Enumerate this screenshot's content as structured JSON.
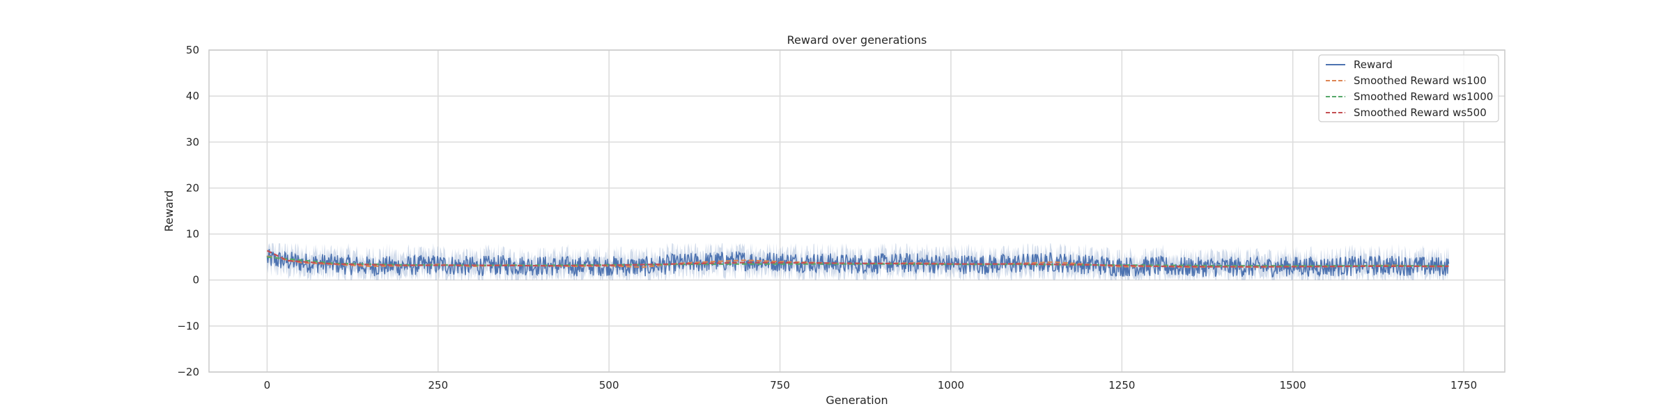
{
  "chart_data": {
    "type": "line",
    "title": "Reward over generations",
    "xlabel": "Generation",
    "ylabel": "Reward",
    "xlim": [
      -85,
      1810
    ],
    "ylim": [
      -20,
      50
    ],
    "x_ticks": [
      0,
      250,
      500,
      750,
      1000,
      1250,
      1500,
      1750
    ],
    "y_ticks": [
      -20,
      -10,
      0,
      10,
      20,
      30,
      40,
      50
    ],
    "grid": true,
    "legend_position": "top-right",
    "series": [
      {
        "name": "Reward",
        "style": "solid",
        "color": "#4c72b0",
        "has_confidence_band": true,
        "x_range": [
          0,
          1728
        ],
        "segment_means": [
          {
            "x": 0,
            "mean": 4.6
          },
          {
            "x": 50,
            "mean": 3.8
          },
          {
            "x": 100,
            "mean": 3.5
          },
          {
            "x": 150,
            "mean": 3.0
          },
          {
            "x": 200,
            "mean": 3.1
          },
          {
            "x": 250,
            "mean": 3.4
          },
          {
            "x": 300,
            "mean": 3.0
          },
          {
            "x": 350,
            "mean": 3.3
          },
          {
            "x": 400,
            "mean": 3.1
          },
          {
            "x": 450,
            "mean": 3.0
          },
          {
            "x": 500,
            "mean": 3.1
          },
          {
            "x": 550,
            "mean": 2.9
          },
          {
            "x": 600,
            "mean": 3.6
          },
          {
            "x": 650,
            "mean": 4.0
          },
          {
            "x": 700,
            "mean": 4.2
          },
          {
            "x": 750,
            "mean": 4.0
          },
          {
            "x": 800,
            "mean": 3.8
          },
          {
            "x": 850,
            "mean": 3.5
          },
          {
            "x": 900,
            "mean": 3.6
          },
          {
            "x": 950,
            "mean": 3.7
          },
          {
            "x": 1000,
            "mean": 3.5
          },
          {
            "x": 1050,
            "mean": 3.4
          },
          {
            "x": 1100,
            "mean": 3.6
          },
          {
            "x": 1150,
            "mean": 3.9
          },
          {
            "x": 1200,
            "mean": 3.4
          },
          {
            "x": 1250,
            "mean": 2.9
          },
          {
            "x": 1300,
            "mean": 3.0
          },
          {
            "x": 1350,
            "mean": 2.8
          },
          {
            "x": 1400,
            "mean": 2.9
          },
          {
            "x": 1450,
            "mean": 2.8
          },
          {
            "x": 1500,
            "mean": 3.0
          },
          {
            "x": 1550,
            "mean": 2.9
          },
          {
            "x": 1600,
            "mean": 3.1
          },
          {
            "x": 1650,
            "mean": 3.2
          },
          {
            "x": 1700,
            "mean": 2.9
          },
          {
            "x": 1728,
            "mean": 3.0
          }
        ],
        "typical_range": [
          0,
          7.5
        ]
      },
      {
        "name": "Smoothed Reward ws100",
        "style": "dashed",
        "color": "#dd8452",
        "points": [
          [
            0,
            5.2
          ],
          [
            50,
            3.8
          ],
          [
            100,
            3.4
          ],
          [
            150,
            3.0
          ],
          [
            200,
            3.1
          ],
          [
            250,
            3.4
          ],
          [
            300,
            3.0
          ],
          [
            350,
            3.3
          ],
          [
            400,
            3.1
          ],
          [
            450,
            3.0
          ],
          [
            500,
            3.1
          ],
          [
            550,
            2.8
          ],
          [
            600,
            3.6
          ],
          [
            650,
            4.0
          ],
          [
            700,
            4.3
          ],
          [
            750,
            4.0
          ],
          [
            800,
            3.8
          ],
          [
            850,
            3.5
          ],
          [
            900,
            3.6
          ],
          [
            950,
            3.7
          ],
          [
            1000,
            3.5
          ],
          [
            1050,
            3.4
          ],
          [
            1100,
            3.6
          ],
          [
            1150,
            3.9
          ],
          [
            1200,
            3.4
          ],
          [
            1250,
            2.9
          ],
          [
            1300,
            3.0
          ],
          [
            1350,
            2.8
          ],
          [
            1400,
            2.9
          ],
          [
            1450,
            2.8
          ],
          [
            1500,
            3.0
          ],
          [
            1550,
            2.9
          ],
          [
            1600,
            3.1
          ],
          [
            1650,
            3.2
          ],
          [
            1700,
            2.9
          ],
          [
            1728,
            3.0
          ]
        ]
      },
      {
        "name": "Smoothed Reward ws1000",
        "style": "dashed",
        "color": "#55a868",
        "points": [
          [
            0,
            5.0
          ],
          [
            100,
            3.6
          ],
          [
            200,
            3.3
          ],
          [
            300,
            3.2
          ],
          [
            400,
            3.2
          ],
          [
            500,
            3.3
          ],
          [
            600,
            3.4
          ],
          [
            700,
            3.5
          ],
          [
            800,
            3.5
          ],
          [
            900,
            3.5
          ],
          [
            1000,
            3.4
          ],
          [
            1100,
            3.4
          ],
          [
            1200,
            3.3
          ],
          [
            1300,
            3.2
          ],
          [
            1400,
            3.1
          ],
          [
            1500,
            3.1
          ],
          [
            1600,
            3.1
          ],
          [
            1728,
            3.1
          ]
        ]
      },
      {
        "name": "Smoothed Reward ws500",
        "style": "dashed",
        "color": "#c44e52",
        "points": [
          [
            0,
            6.4
          ],
          [
            30,
            4.2
          ],
          [
            100,
            3.5
          ],
          [
            200,
            3.2
          ],
          [
            300,
            3.2
          ],
          [
            400,
            3.1
          ],
          [
            500,
            3.2
          ],
          [
            600,
            3.5
          ],
          [
            700,
            3.8
          ],
          [
            800,
            3.7
          ],
          [
            900,
            3.6
          ],
          [
            1000,
            3.5
          ],
          [
            1100,
            3.5
          ],
          [
            1200,
            3.3
          ],
          [
            1300,
            3.0
          ],
          [
            1400,
            2.9
          ],
          [
            1500,
            2.9
          ],
          [
            1600,
            3.0
          ],
          [
            1728,
            3.0
          ]
        ]
      }
    ]
  }
}
